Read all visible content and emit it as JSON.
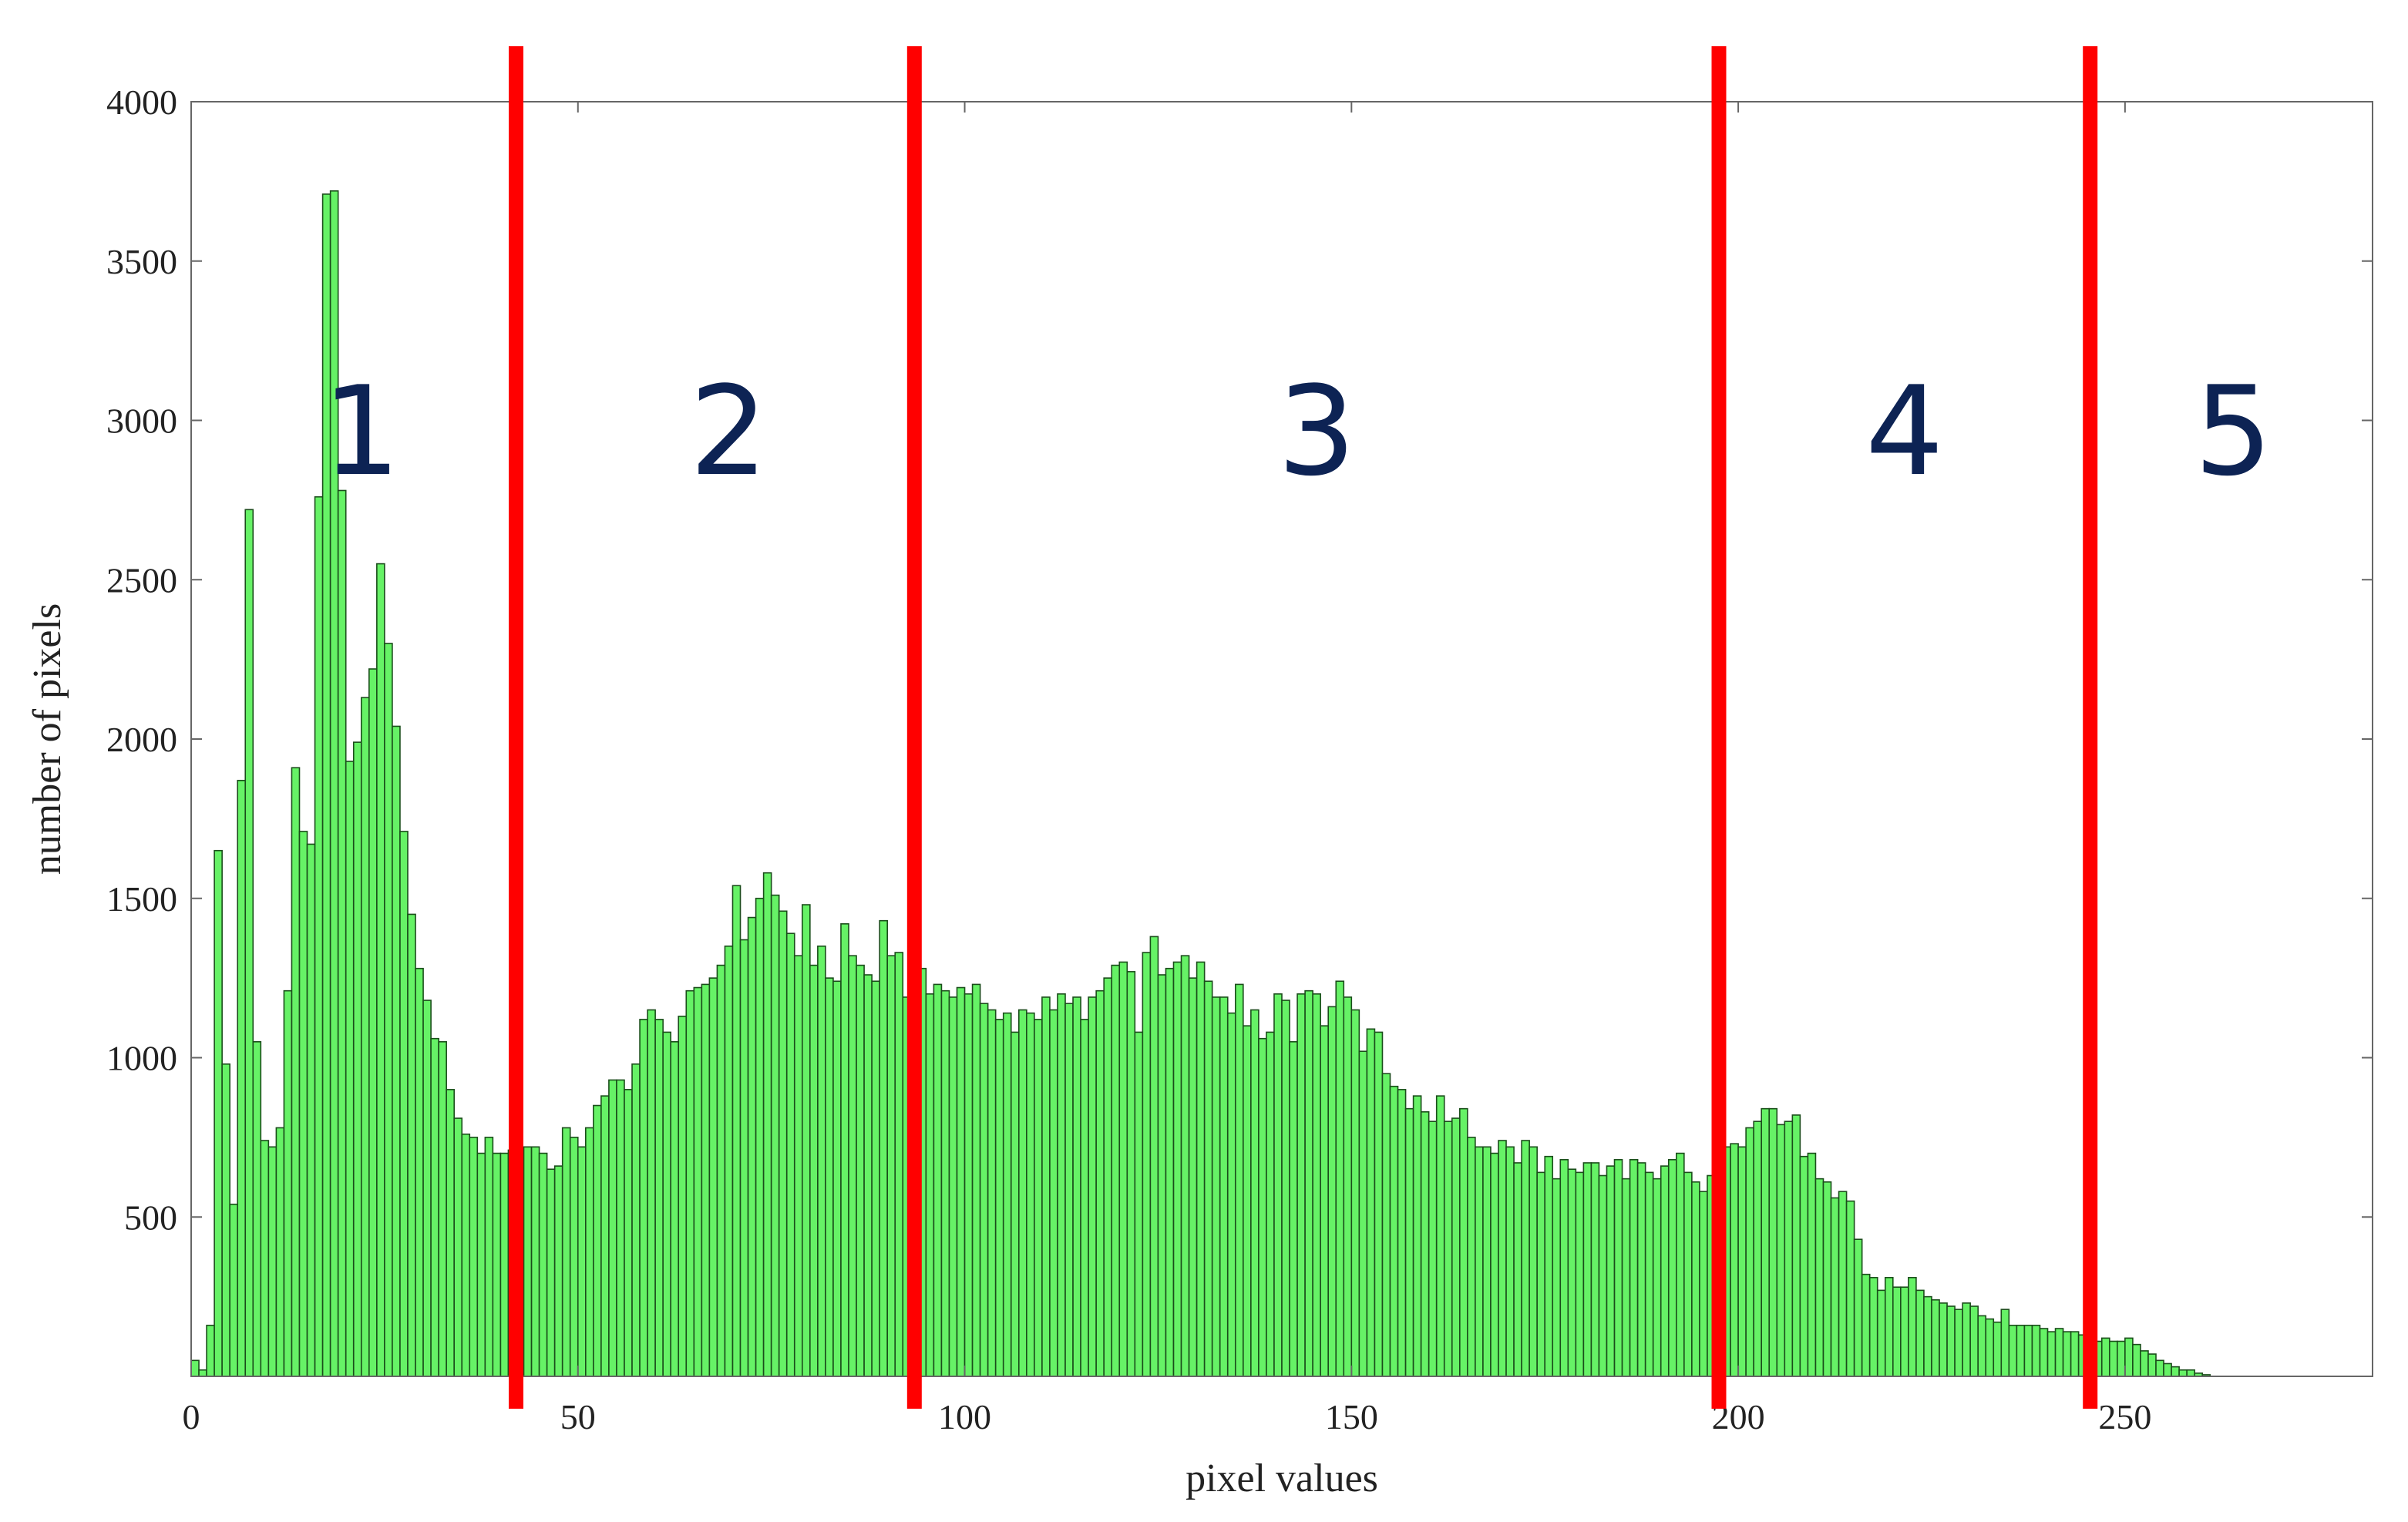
{
  "chart_data": {
    "type": "bar",
    "title": "",
    "xlabel": "pixel values",
    "ylabel": "number of pixels",
    "xlim": [
      0,
      282
    ],
    "ylim": [
      0,
      4000
    ],
    "x_ticks": [
      0,
      50,
      100,
      150,
      200,
      250
    ],
    "y_ticks": [
      500,
      1000,
      1500,
      2000,
      2500,
      3000,
      3500,
      4000
    ],
    "grid": false,
    "legend": "none",
    "bar_color": "#66f266",
    "bar_edge_color": "#1a4d1a",
    "divider_color": "#ff0000",
    "region_label_color": "#0d2354",
    "dividers": [
      42,
      93.5,
      197.5,
      245.5
    ],
    "regions": [
      {
        "label": "1",
        "x": 22
      },
      {
        "label": "2",
        "x": 69.5
      },
      {
        "label": "3",
        "x": 145.5
      },
      {
        "label": "4",
        "x": 221.5
      },
      {
        "label": "5",
        "x": 264
      }
    ],
    "bins_start": 0,
    "values": [
      50,
      20,
      160,
      1650,
      980,
      540,
      1870,
      2720,
      1050,
      740,
      720,
      780,
      1210,
      1910,
      1710,
      1670,
      2760,
      3710,
      3720,
      2780,
      1930,
      1990,
      2130,
      2220,
      2550,
      2300,
      2040,
      1710,
      1450,
      1280,
      1180,
      1060,
      1050,
      900,
      810,
      760,
      750,
      700,
      750,
      700,
      700,
      710,
      720,
      720,
      720,
      700,
      650,
      660,
      780,
      750,
      720,
      780,
      850,
      880,
      930,
      930,
      900,
      980,
      1120,
      1150,
      1120,
      1080,
      1050,
      1130,
      1210,
      1220,
      1230,
      1250,
      1290,
      1350,
      1540,
      1370,
      1440,
      1500,
      1580,
      1510,
      1460,
      1390,
      1320,
      1480,
      1290,
      1350,
      1250,
      1240,
      1420,
      1320,
      1290,
      1260,
      1240,
      1430,
      1320,
      1330,
      1190,
      1270,
      1280,
      1200,
      1230,
      1210,
      1190,
      1220,
      1200,
      1230,
      1170,
      1150,
      1120,
      1140,
      1080,
      1150,
      1140,
      1120,
      1190,
      1150,
      1200,
      1170,
      1190,
      1120,
      1190,
      1210,
      1250,
      1290,
      1300,
      1270,
      1080,
      1330,
      1380,
      1260,
      1280,
      1300,
      1320,
      1250,
      1300,
      1240,
      1190,
      1190,
      1140,
      1230,
      1100,
      1150,
      1060,
      1080,
      1200,
      1180,
      1050,
      1200,
      1210,
      1200,
      1100,
      1160,
      1240,
      1190,
      1150,
      1020,
      1090,
      1080,
      950,
      910,
      900,
      840,
      880,
      830,
      800,
      880,
      800,
      810,
      840,
      750,
      720,
      720,
      700,
      740,
      720,
      670,
      740,
      720,
      640,
      690,
      620,
      680,
      650,
      640,
      670,
      670,
      630,
      660,
      680,
      620,
      680,
      670,
      640,
      620,
      660,
      680,
      700,
      640,
      610,
      580,
      630,
      680,
      720,
      730,
      720,
      780,
      800,
      840,
      840,
      790,
      800,
      820,
      690,
      700,
      620,
      610,
      560,
      580,
      550,
      430,
      320,
      310,
      270,
      310,
      280,
      280,
      310,
      270,
      250,
      240,
      230,
      220,
      210,
      230,
      220,
      190,
      180,
      170,
      210,
      160,
      160,
      160,
      160,
      150,
      140,
      150,
      140,
      140,
      130,
      120,
      110,
      120,
      110,
      110,
      120,
      100,
      80,
      70,
      50,
      40,
      30,
      20,
      20,
      10,
      5,
      0,
      0,
      0
    ]
  }
}
